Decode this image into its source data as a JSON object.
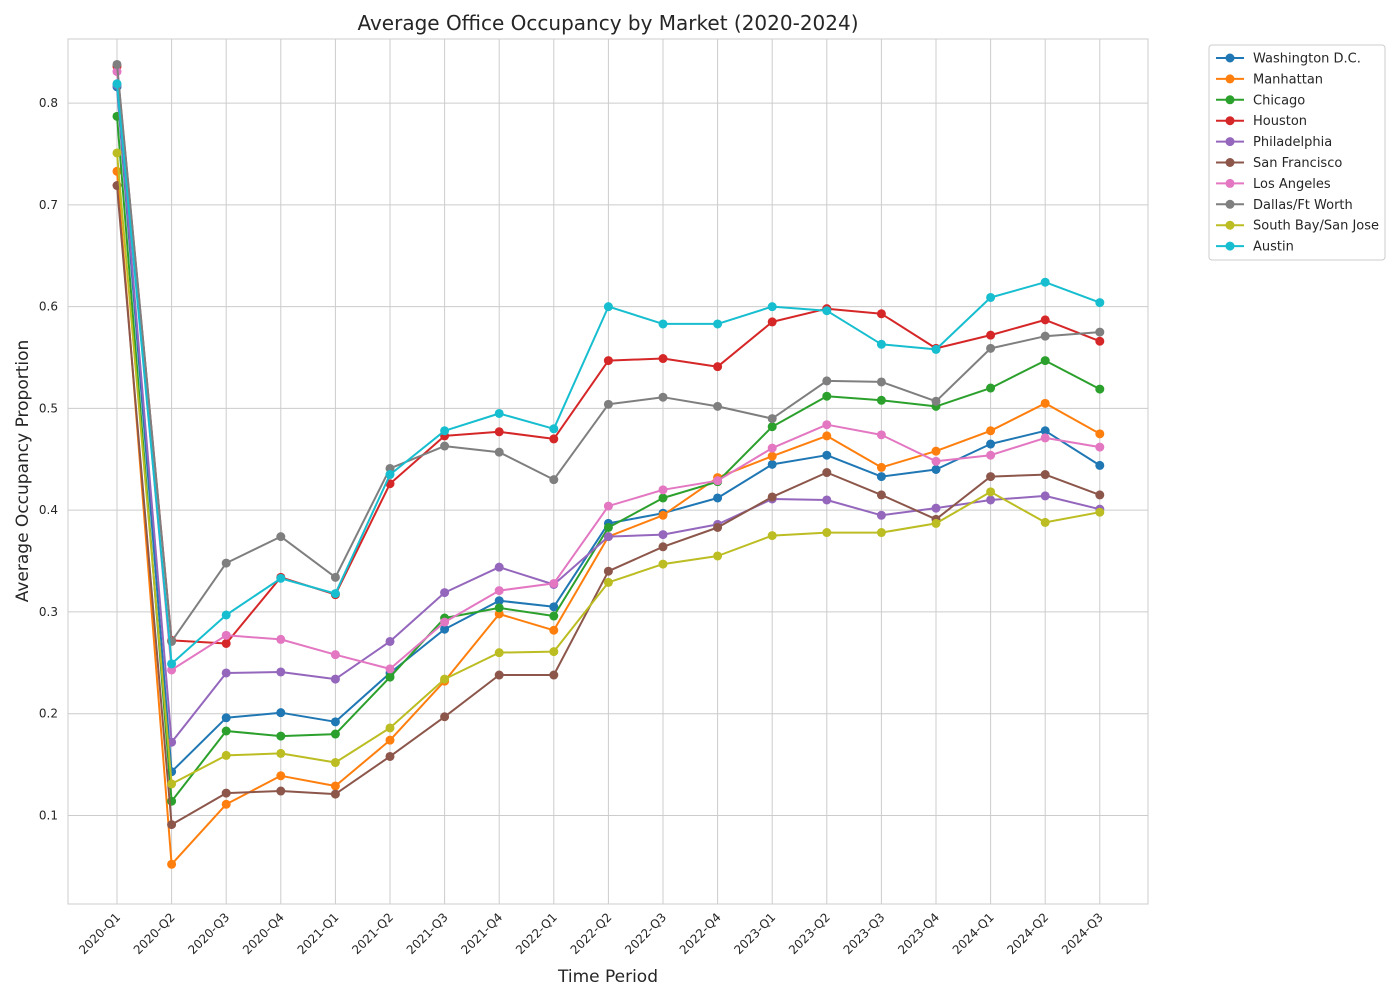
{
  "chart_data": {
    "type": "line",
    "title": "Average Office Occupancy by Market (2020-2024)",
    "xlabel": "Time Period",
    "ylabel": "Average Occupancy Proportion",
    "ylim": [
      0.013,
      0.863
    ],
    "yticks": [
      "0.1",
      "0.2",
      "0.3",
      "0.4",
      "0.5",
      "0.6",
      "0.7",
      "0.8"
    ],
    "grid": true,
    "legend_position": "outside-right-top",
    "categories": [
      "2020-Q1",
      "2020-Q2",
      "2020-Q3",
      "2020-Q4",
      "2021-Q1",
      "2021-Q2",
      "2021-Q3",
      "2021-Q4",
      "2022-Q1",
      "2022-Q2",
      "2022-Q3",
      "2022-Q4",
      "2023-Q1",
      "2023-Q2",
      "2023-Q3",
      "2023-Q4",
      "2024-Q1",
      "2024-Q2",
      "2024-Q3"
    ],
    "series": [
      {
        "name": "Washington D.C.",
        "color": "#1f77b4",
        "values": [
          0.816,
          0.143,
          0.196,
          0.201,
          0.192,
          0.24,
          0.283,
          0.311,
          0.305,
          0.387,
          0.397,
          0.412,
          0.445,
          0.454,
          0.433,
          0.44,
          0.465,
          0.478,
          0.444
        ]
      },
      {
        "name": "Manhattan",
        "color": "#ff7f0e",
        "values": [
          0.733,
          0.052,
          0.111,
          0.139,
          0.129,
          0.174,
          0.232,
          0.298,
          0.282,
          0.374,
          0.395,
          0.432,
          0.453,
          0.473,
          0.442,
          0.458,
          0.478,
          0.505,
          0.475
        ]
      },
      {
        "name": "Chicago",
        "color": "#2ca02c",
        "values": [
          0.787,
          0.114,
          0.183,
          0.178,
          0.18,
          0.236,
          0.294,
          0.304,
          0.296,
          0.383,
          0.412,
          0.428,
          0.482,
          0.512,
          0.508,
          0.502,
          0.52,
          0.547,
          0.519
        ]
      },
      {
        "name": "Houston",
        "color": "#d62728",
        "values": [
          0.836,
          0.272,
          0.269,
          0.334,
          0.317,
          0.426,
          0.473,
          0.477,
          0.47,
          0.547,
          0.549,
          0.541,
          0.585,
          0.598,
          0.593,
          0.559,
          0.572,
          0.587,
          0.566
        ]
      },
      {
        "name": "Philadelphia",
        "color": "#9467bd",
        "values": [
          0.818,
          0.172,
          0.24,
          0.241,
          0.234,
          0.271,
          0.319,
          0.344,
          0.327,
          0.374,
          0.376,
          0.386,
          0.411,
          0.41,
          0.395,
          0.402,
          0.41,
          0.414,
          0.401
        ]
      },
      {
        "name": "San Francisco",
        "color": "#8c564b",
        "values": [
          0.719,
          0.091,
          0.122,
          0.124,
          0.121,
          0.158,
          0.197,
          0.238,
          0.238,
          0.34,
          0.364,
          0.383,
          0.413,
          0.437,
          0.415,
          0.391,
          0.433,
          0.435,
          0.415
        ]
      },
      {
        "name": "Los Angeles",
        "color": "#e377c2",
        "values": [
          0.831,
          0.243,
          0.277,
          0.273,
          0.258,
          0.244,
          0.29,
          0.321,
          0.328,
          0.404,
          0.42,
          0.429,
          0.461,
          0.484,
          0.474,
          0.448,
          0.454,
          0.471,
          0.462
        ]
      },
      {
        "name": "Dallas/Ft Worth",
        "color": "#7f7f7f",
        "values": [
          0.838,
          0.271,
          0.348,
          0.374,
          0.334,
          0.441,
          0.463,
          0.457,
          0.43,
          0.504,
          0.511,
          0.502,
          0.49,
          0.527,
          0.526,
          0.507,
          0.559,
          0.571,
          0.575
        ]
      },
      {
        "name": "South Bay/San Jose",
        "color": "#bcbd22",
        "values": [
          0.751,
          0.131,
          0.159,
          0.161,
          0.152,
          0.186,
          0.234,
          0.26,
          0.261,
          0.329,
          0.347,
          0.355,
          0.375,
          0.378,
          0.378,
          0.387,
          0.418,
          0.388,
          0.398
        ]
      },
      {
        "name": "Austin",
        "color": "#17becf",
        "values": [
          0.819,
          0.249,
          0.297,
          0.333,
          0.318,
          0.435,
          0.478,
          0.495,
          0.48,
          0.6,
          0.583,
          0.583,
          0.6,
          0.596,
          0.563,
          0.558,
          0.609,
          0.624,
          0.604
        ]
      }
    ]
  }
}
